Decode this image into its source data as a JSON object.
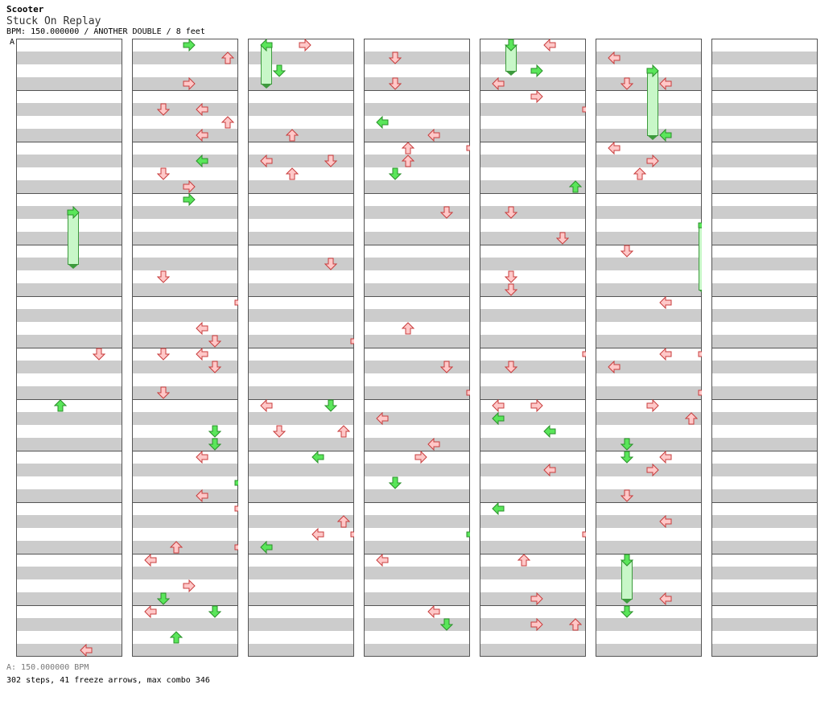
{
  "header": {
    "artist": "Scooter",
    "title": "Stuck On Replay",
    "info": "BPM: 150.000000 / ANOTHER DOUBLE / 8 feet"
  },
  "bpm_marker": {
    "label": "A"
  },
  "footer": {
    "bpm": "A: 150.000000 BPM",
    "stats": "302 steps, 41 freeze arrows, max combo 346"
  },
  "chart_data": {
    "type": "step-chart",
    "columns": 7,
    "measures_per_column": 12,
    "lanes_per_column": 8,
    "bpm": 150,
    "steps": 302,
    "freeze_arrows": 41,
    "max_combo": 346,
    "colors": {
      "red_fill": "#ffc8c8",
      "red_stroke": "#c83c3c",
      "green_fill": "#5ae65a",
      "green_stroke": "#2a8f2a",
      "freeze_body": "#c8f7c8"
    }
  }
}
